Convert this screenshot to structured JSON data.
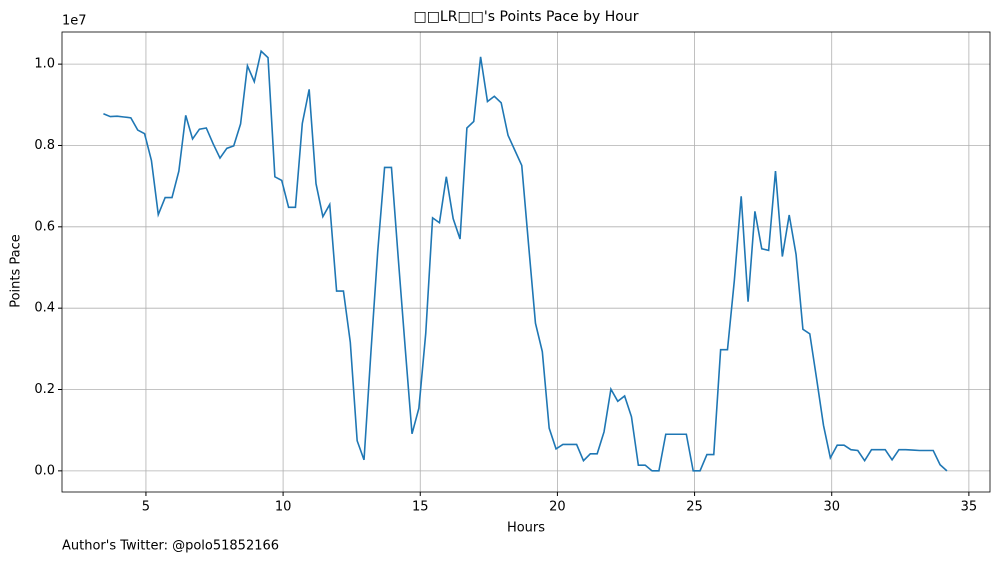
{
  "chart_data": {
    "type": "line",
    "title": "□□LR□□'s Points Pace by Hour",
    "x_label": "Hours",
    "y_label": "Points Pace",
    "y_offset_label": "1e7",
    "footer": "Author's Twitter: @polo51852166",
    "color": "#1f77b4",
    "grid": true,
    "xlim": [
      1.94,
      35.77
    ],
    "ylim": [
      -0.052,
      1.079
    ],
    "xticks": [
      5,
      10,
      15,
      20,
      25,
      30,
      35
    ],
    "yticks": [
      {
        "value": 0,
        "label": "0.0"
      },
      0.2,
      0.4,
      0.6,
      0.8,
      {
        "value": 1,
        "label": "1.0"
      }
    ],
    "x": [
      3.45,
      3.7,
      3.95,
      4.2,
      4.45,
      4.7,
      4.95,
      5.2,
      5.45,
      5.7,
      5.95,
      6.2,
      6.45,
      6.7,
      6.95,
      7.2,
      7.45,
      7.7,
      7.95,
      8.2,
      8.45,
      8.7,
      8.95,
      9.2,
      9.45,
      9.7,
      9.95,
      10.2,
      10.45,
      10.7,
      10.95,
      11.2,
      11.45,
      11.7,
      11.95,
      12.2,
      12.45,
      12.7,
      12.95,
      13.2,
      13.45,
      13.7,
      13.95,
      14.2,
      14.45,
      14.7,
      14.95,
      15.2,
      15.45,
      15.7,
      15.95,
      16.2,
      16.45,
      16.7,
      16.95,
      17.2,
      17.45,
      17.7,
      17.95,
      18.2,
      18.45,
      18.7,
      18.95,
      19.2,
      19.45,
      19.7,
      19.95,
      20.2,
      20.45,
      20.7,
      20.95,
      21.2,
      21.45,
      21.7,
      21.95,
      22.2,
      22.45,
      22.7,
      22.95,
      23.2,
      23.45,
      23.7,
      23.95,
      24.2,
      24.45,
      24.7,
      24.95,
      25.2,
      25.45,
      25.7,
      25.95,
      26.2,
      26.45,
      26.7,
      26.95,
      27.2,
      27.45,
      27.7,
      27.95,
      28.2,
      28.45,
      28.7,
      28.95,
      29.2,
      29.45,
      29.7,
      29.95,
      30.2,
      30.45,
      30.7,
      30.95,
      31.2,
      31.45,
      31.7,
      31.95,
      32.2,
      32.45,
      32.7,
      32.95,
      33.2,
      33.45,
      33.7,
      33.95,
      34.2
    ],
    "values": [
      0.878,
      0.871,
      0.872,
      0.87,
      0.868,
      0.838,
      0.829,
      0.763,
      0.63,
      0.672,
      0.672,
      0.737,
      0.874,
      0.816,
      0.84,
      0.843,
      0.804,
      0.769,
      0.793,
      0.799,
      0.853,
      0.996,
      0.957,
      1.032,
      1.016,
      0.723,
      0.714,
      0.648,
      0.648,
      0.854,
      0.938,
      0.706,
      0.625,
      0.655,
      0.442,
      0.442,
      0.316,
      0.074,
      0.027,
      0.29,
      0.54,
      0.746,
      0.746,
      0.521,
      0.303,
      0.091,
      0.154,
      0.338,
      0.622,
      0.61,
      0.723,
      0.62,
      0.57,
      0.843,
      0.859,
      1.018,
      0.908,
      0.921,
      0.905,
      0.825,
      0.788,
      0.751,
      0.555,
      0.363,
      0.293,
      0.105,
      0.054,
      0.065,
      0.065,
      0.065,
      0.025,
      0.042,
      0.042,
      0.096,
      0.201,
      0.171,
      0.184,
      0.133,
      0.014,
      0.014,
      0,
      0,
      0.09,
      0.09,
      0.09,
      0.09,
      0,
      0,
      0.04,
      0.04,
      0.298,
      0.298,
      0.468,
      0.675,
      0.416,
      0.638,
      0.546,
      0.542,
      0.737,
      0.527,
      0.629,
      0.532,
      0.348,
      0.337,
      0.226,
      0.112,
      0.032,
      0.063,
      0.063,
      0.052,
      0.05,
      0.025,
      0.052,
      0.052,
      0.052,
      0.027,
      0.052,
      0.052,
      0.051,
      0.05,
      0.05,
      0.05,
      0.015,
      0
    ]
  }
}
